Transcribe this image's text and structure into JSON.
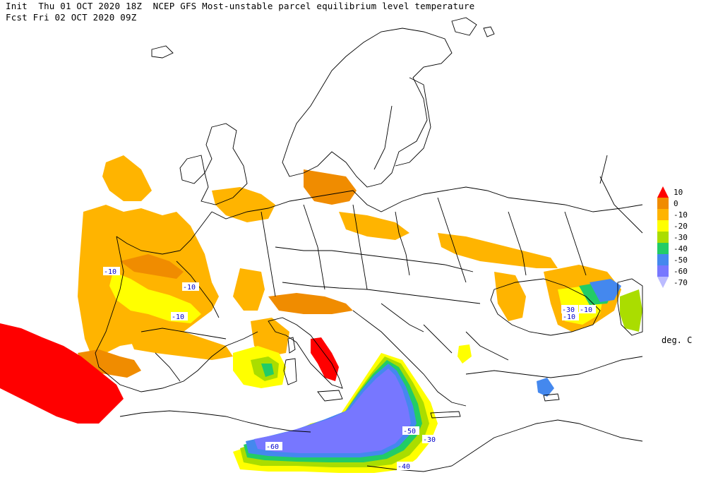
{
  "header": {
    "line1": "Init  Thu 01 OCT 2020 18Z  NCEP GFS Most-unstable parcel equilibrium level temperature",
    "line2": "Fcst Fri 02 OCT 2020 09Z"
  },
  "legend": {
    "units": "deg. C",
    "bins": [
      {
        "label": "10",
        "color": "#ff0000"
      },
      {
        "label": "0",
        "color": "#f08c00"
      },
      {
        "label": "-10",
        "color": "#ffb400"
      },
      {
        "label": "-20",
        "color": "#ffff00"
      },
      {
        "label": "-30",
        "color": "#aadd00"
      },
      {
        "label": "-40",
        "color": "#22cc66"
      },
      {
        "label": "-50",
        "color": "#4488ee"
      },
      {
        "label": "-60",
        "color": "#7777ff"
      },
      {
        "label": "-70",
        "color": "#bbbbff"
      }
    ]
  },
  "contour_labels": [
    "-10",
    "-10",
    "-10",
    "-30",
    "-10",
    "-50",
    "-30",
    "-60",
    "-40",
    "-10"
  ]
}
